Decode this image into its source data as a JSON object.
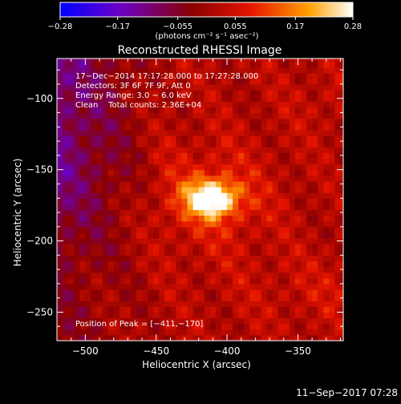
{
  "chart_data": {
    "type": "heatmap",
    "title": "Reconstructed RHESSI Image",
    "xlabel": "Heliocentric X (arcsec)",
    "ylabel": "Heliocentric Y (arcsec)",
    "xlim": [
      -520,
      -318
    ],
    "ylim": [
      -270,
      -72
    ],
    "xticks": [
      -500,
      -450,
      -400,
      -350
    ],
    "xtick_labels": [
      "−500",
      "−450",
      "−400",
      "−350"
    ],
    "yticks": [
      -100,
      -150,
      -200,
      -250
    ],
    "ytick_labels": [
      "−100",
      "−150",
      "−200",
      "−250"
    ],
    "colorbar": {
      "range": [
        -0.28,
        0.28
      ],
      "ticks": [
        -0.28,
        -0.17,
        -0.055,
        0.055,
        0.17,
        0.28
      ],
      "tick_labels": [
        "−0.28",
        "−0.17",
        "−0.055",
        "0.055",
        "0.17",
        "0.28"
      ],
      "units_label": "(photons cm⁻² s⁻¹ asec⁻²)",
      "colors": [
        "#0000ff",
        "#6a00c8",
        "#8a0000",
        "#e61400",
        "#ffa000",
        "#ffffff"
      ]
    },
    "peak": {
      "x": -411,
      "y": -170,
      "value": 0.28
    },
    "annotations": [
      "17−Dec−2014 17:17:28.000 to 17:27:28.000",
      "Detectors: 3F 6F 7F 9F, Att 0",
      "Energy Range: 3.0 − 6.0 keV",
      "Clean    Total counts: 2.36E+04"
    ],
    "peak_label": "Position of Peak = [−411,−170]",
    "grid": false
  },
  "footer_timestamp": "11−Sep−2017 07:28"
}
